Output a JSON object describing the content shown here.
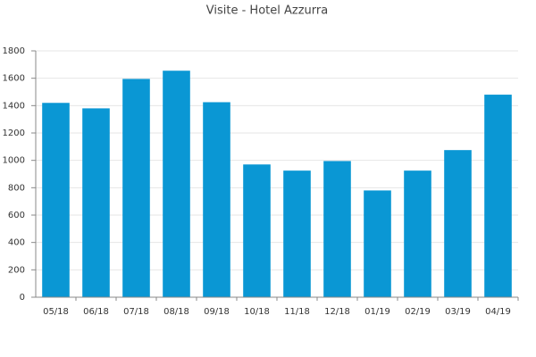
{
  "chart_data": {
    "type": "bar",
    "title": "Visite - Hotel Azzurra",
    "categories": [
      "05/18",
      "06/18",
      "07/18",
      "08/18",
      "09/18",
      "10/18",
      "11/18",
      "12/18",
      "01/19",
      "02/19",
      "03/19",
      "04/19"
    ],
    "values": [
      1420,
      1380,
      1595,
      1655,
      1425,
      970,
      925,
      995,
      780,
      925,
      1075,
      1480
    ],
    "color": "#0a97d4",
    "ylim": [
      0,
      1800
    ],
    "yticks": [
      0,
      200,
      400,
      600,
      800,
      1000,
      1200,
      1400,
      1600,
      1800
    ],
    "grid": true
  }
}
